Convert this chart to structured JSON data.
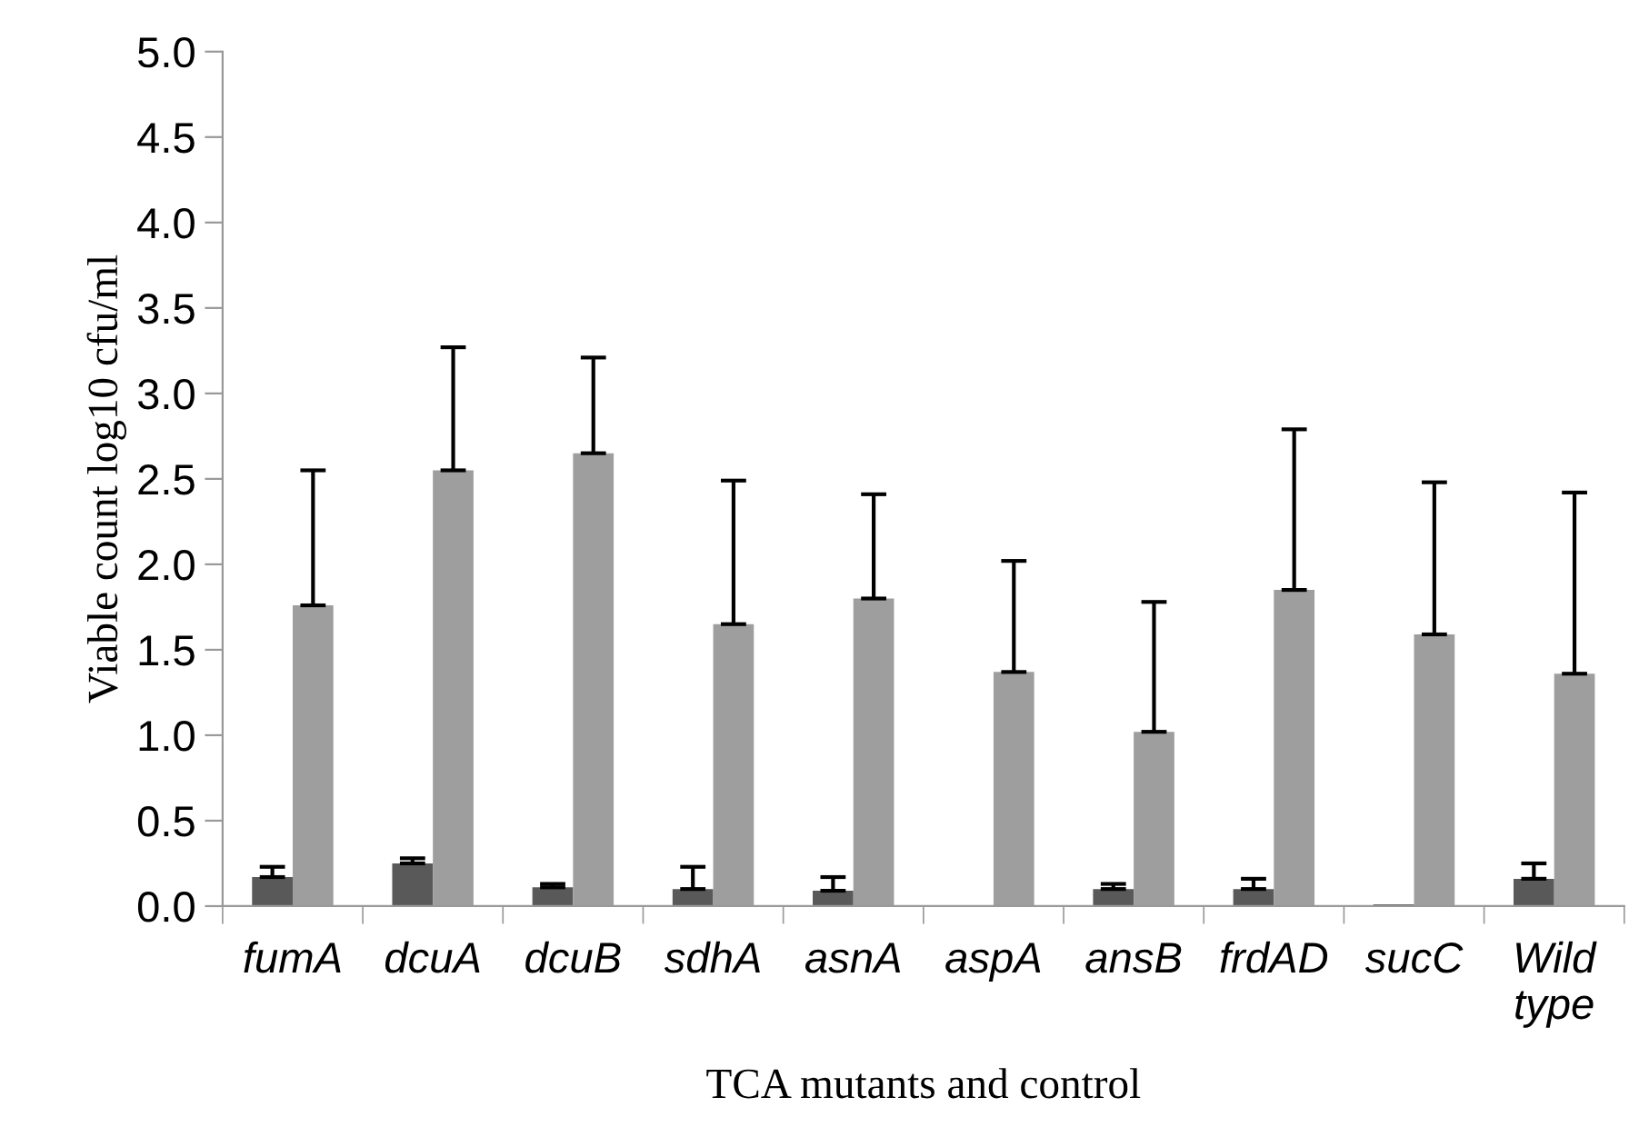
{
  "chart_data": {
    "type": "bar",
    "xlabel": "TCA mutants and control",
    "ylabel": "Viable count log10 cfu/ml",
    "categories": [
      "fumA",
      "dcuA",
      "dcuB",
      "sdhA",
      "asnA",
      "aspA",
      "ansB",
      "frdAD",
      "sucC",
      "Wild\ntype"
    ],
    "series": [
      {
        "color": "#595959",
        "values": [
          0.17,
          0.25,
          0.11,
          0.1,
          0.09,
          0.0,
          0.1,
          0.1,
          0.01,
          0.16
        ],
        "errors": [
          [
            0.17,
            0.23
          ],
          [
            0.25,
            0.28
          ],
          [
            0.11,
            0.13
          ],
          [
            0.1,
            0.23
          ],
          [
            0.09,
            0.17
          ],
          null,
          [
            0.1,
            0.13
          ],
          [
            0.1,
            0.16
          ],
          null,
          [
            0.16,
            0.25
          ]
        ]
      },
      {
        "color": "#9e9e9e",
        "values": [
          1.76,
          2.55,
          2.65,
          1.65,
          1.8,
          1.37,
          1.02,
          1.85,
          1.59,
          1.36
        ],
        "errors": [
          [
            1.76,
            2.55
          ],
          [
            2.55,
            3.27
          ],
          [
            2.65,
            3.21
          ],
          [
            1.65,
            2.49
          ],
          [
            1.8,
            2.41
          ],
          [
            1.37,
            2.02
          ],
          [
            1.02,
            1.78
          ],
          [
            1.85,
            2.79
          ],
          [
            1.59,
            2.48
          ],
          [
            1.36,
            2.42
          ]
        ]
      }
    ],
    "ylim": [
      0,
      5.0
    ],
    "yticks": [
      {
        "value": 0,
        "label": "0.0"
      },
      {
        "value": 0.5,
        "label": "0.5"
      },
      {
        "value": 1,
        "label": "1.0"
      },
      {
        "value": 1.5,
        "label": "1.5"
      },
      {
        "value": 2,
        "label": "2.0"
      },
      {
        "value": 2.5,
        "label": "2.5"
      },
      {
        "value": 3,
        "label": "3.0"
      },
      {
        "value": 3.5,
        "label": "3.5"
      },
      {
        "value": 4,
        "label": "4.0"
      },
      {
        "value": 4.5,
        "label": "4.5"
      },
      {
        "value": 5,
        "label": "5.0"
      }
    ],
    "grid": false,
    "legend": false
  }
}
